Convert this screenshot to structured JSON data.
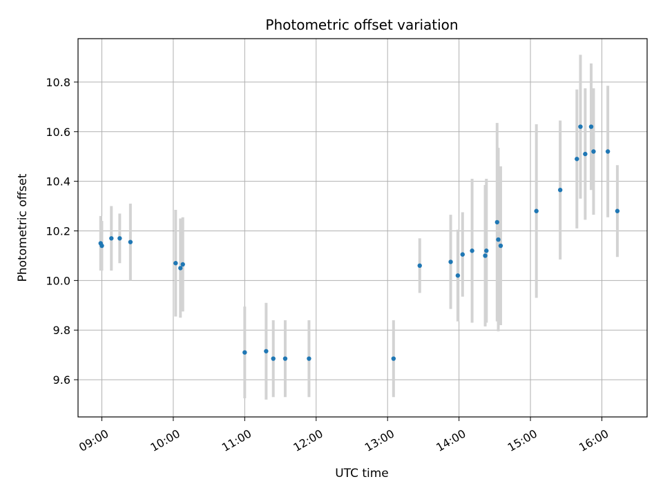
{
  "chart_data": {
    "type": "scatter",
    "title": "Photometric offset variation",
    "xlabel": "UTC time",
    "ylabel": "Photometric offset",
    "xlim": [
      "08:40",
      "16:38"
    ],
    "ylim": [
      9.45,
      10.975
    ],
    "x_ticks": [
      "09:00",
      "10:00",
      "11:00",
      "12:00",
      "13:00",
      "14:00",
      "15:00",
      "16:00"
    ],
    "y_ticks": [
      9.6,
      9.8,
      10.0,
      10.2,
      10.4,
      10.6,
      10.8
    ],
    "y_tick_labels": [
      "9.6",
      "9.8",
      "10.0",
      "10.2",
      "10.4",
      "10.6",
      "10.8"
    ],
    "grid": true,
    "marker_color": "#1f77b4",
    "errorbar_color": "#d3d3d3",
    "points": [
      {
        "x": "08:59",
        "y": 10.15,
        "err": 0.11
      },
      {
        "x": "09:00",
        "y": 10.14,
        "err": 0.1
      },
      {
        "x": "09:08",
        "y": 10.17,
        "err": 0.13
      },
      {
        "x": "09:15",
        "y": 10.17,
        "err": 0.1
      },
      {
        "x": "09:24",
        "y": 10.155,
        "err": 0.155
      },
      {
        "x": "10:02",
        "y": 10.07,
        "err": 0.215
      },
      {
        "x": "10:06",
        "y": 10.05,
        "err": 0.2
      },
      {
        "x": "10:08",
        "y": 10.065,
        "err": 0.19
      },
      {
        "x": "11:00",
        "y": 9.71,
        "err": 0.185
      },
      {
        "x": "11:18",
        "y": 9.715,
        "err": 0.195
      },
      {
        "x": "11:24",
        "y": 9.685,
        "err": 0.155
      },
      {
        "x": "11:34",
        "y": 9.685,
        "err": 0.155
      },
      {
        "x": "11:54",
        "y": 9.685,
        "err": 0.155
      },
      {
        "x": "13:05",
        "y": 9.685,
        "err": 0.155
      },
      {
        "x": "13:27",
        "y": 10.06,
        "err": 0.11
      },
      {
        "x": "13:53",
        "y": 10.075,
        "err": 0.19
      },
      {
        "x": "13:59",
        "y": 10.02,
        "err": 0.185
      },
      {
        "x": "14:03",
        "y": 10.105,
        "err": 0.17
      },
      {
        "x": "14:11",
        "y": 10.12,
        "err": 0.29
      },
      {
        "x": "14:22",
        "y": 10.1,
        "err": 0.285
      },
      {
        "x": "14:23",
        "y": 10.12,
        "err": 0.29
      },
      {
        "x": "14:32",
        "y": 10.235,
        "err": 0.4
      },
      {
        "x": "14:33",
        "y": 10.165,
        "err": 0.37
      },
      {
        "x": "14:35",
        "y": 10.14,
        "err": 0.32
      },
      {
        "x": "15:05",
        "y": 10.28,
        "err": 0.35
      },
      {
        "x": "15:25",
        "y": 10.365,
        "err": 0.28
      },
      {
        "x": "15:39",
        "y": 10.49,
        "err": 0.28
      },
      {
        "x": "15:42",
        "y": 10.62,
        "err": 0.29
      },
      {
        "x": "15:46",
        "y": 10.51,
        "err": 0.265
      },
      {
        "x": "15:51",
        "y": 10.62,
        "err": 0.255
      },
      {
        "x": "15:53",
        "y": 10.52,
        "err": 0.255
      },
      {
        "x": "16:05",
        "y": 10.52,
        "err": 0.265
      },
      {
        "x": "16:13",
        "y": 10.28,
        "err": 0.185
      }
    ]
  }
}
